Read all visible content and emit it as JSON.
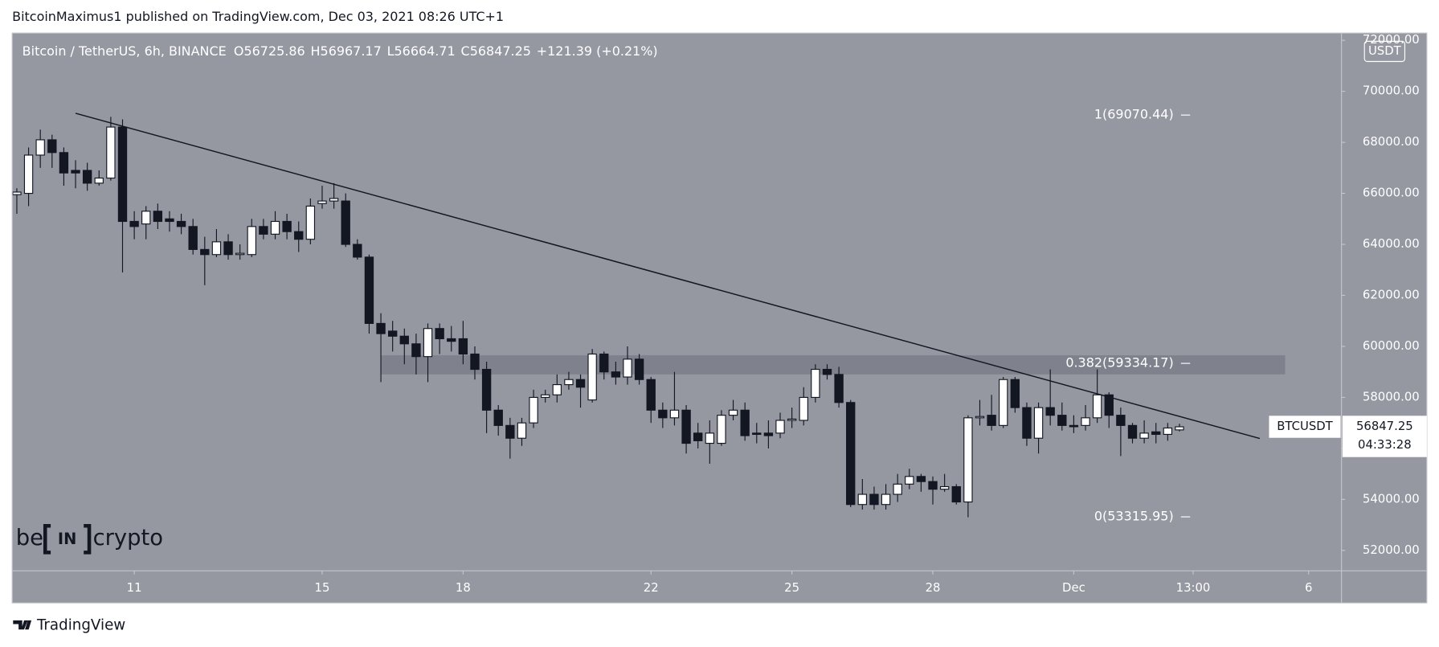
{
  "header": "BitcoinMaximus1 published on TradingView.com, Dec 03, 2021 08:26 UTC+1",
  "footer": "TradingView",
  "watermark": [
    "be",
    "IN",
    "crypto"
  ],
  "chart_data": {
    "type": "candlestick",
    "symbol": "Bitcoin / TetherUS, 6h, BINANCE",
    "legend": {
      "open_label": "O",
      "open": 56725.86,
      "high_label": "H",
      "high": 56967.17,
      "low_label": "L",
      "low": 56664.71,
      "close_label": "C",
      "close": 56847.25,
      "change": "+121.39 (+0.21%)"
    },
    "currency": "USDT",
    "ticker": "BTCUSDT",
    "last_price": 56847.25,
    "countdown": "04:33:28",
    "xlim": [
      8.42,
      36.7
    ],
    "xticks": [
      11,
      15,
      18,
      22,
      25,
      28,
      {
        "value": 31,
        "label": "Dec"
      },
      {
        "value": 33.5417,
        "label": "13:00"
      },
      {
        "value": 36,
        "label": "6"
      }
    ],
    "ylim": [
      51200,
      72250
    ],
    "yticks": [
      {
        "value": 52000,
        "label": "52000.00"
      },
      {
        "value": 54000,
        "label": "54000.00"
      },
      {
        "value": 56000,
        "label": "56000.00"
      },
      {
        "value": 58000,
        "label": "58000.00"
      },
      {
        "value": 60000,
        "label": "60000.00"
      },
      {
        "value": 62000,
        "label": "62000.00"
      },
      {
        "value": 64000,
        "label": "64000.00"
      },
      {
        "value": 66000,
        "label": "66000.00"
      },
      {
        "value": 68000,
        "label": "68000.00"
      },
      {
        "value": 70000,
        "label": "70000.00"
      },
      {
        "value": 72000,
        "label": "72000.00"
      }
    ],
    "x": [
      8.5,
      8.75,
      9,
      9.25,
      9.5,
      9.75,
      10,
      10.25,
      10.5,
      10.75,
      11,
      11.25,
      11.5,
      11.75,
      12,
      12.25,
      12.5,
      12.75,
      13,
      13.25,
      13.5,
      13.75,
      14,
      14.25,
      14.5,
      14.75,
      15,
      15.25,
      15.5,
      15.75,
      16,
      16.25,
      16.5,
      16.75,
      17,
      17.25,
      17.5,
      17.75,
      18,
      18.25,
      18.5,
      18.75,
      19,
      19.25,
      19.5,
      19.75,
      20,
      20.25,
      20.5,
      20.75,
      21,
      21.25,
      21.5,
      21.75,
      22,
      22.25,
      22.5,
      22.75,
      23,
      23.25,
      23.5,
      23.75,
      24,
      24.25,
      24.5,
      24.75,
      25,
      25.25,
      25.5,
      25.75,
      26,
      26.25,
      26.5,
      26.75,
      27,
      27.25,
      27.5,
      27.75,
      28,
      28.25,
      28.5,
      28.75,
      29,
      29.25,
      29.5,
      29.75,
      30,
      30.25,
      30.5,
      30.75,
      31,
      31.25,
      31.5,
      31.75,
      32,
      32.25,
      32.5,
      32.75,
      33,
      33.25
    ],
    "open": [
      65950,
      66000,
      67500,
      68100,
      67600,
      66900,
      66900,
      66400,
      66600,
      68600,
      64900,
      64800,
      65300,
      65000,
      64900,
      64700,
      63800,
      63600,
      64100,
      63600,
      63600,
      64700,
      64400,
      64900,
      64500,
      64200,
      65600,
      65700,
      65700,
      64000,
      63500,
      60900,
      60600,
      60400,
      60100,
      59600,
      60700,
      60300,
      60300,
      59700,
      59100,
      57500,
      56900,
      56400,
      57000,
      58000,
      58100,
      58500,
      58700,
      57900,
      59700,
      59000,
      58800,
      59500,
      58700,
      57500,
      57200,
      57500,
      56600,
      56200,
      56200,
      57300,
      57500,
      56600,
      56600,
      56600,
      57100,
      57100,
      58000,
      59100,
      58900,
      57800,
      53800,
      54200,
      53800,
      54200,
      54600,
      54900,
      54700,
      54400,
      54500,
      53900,
      57200,
      57300,
      56900,
      58700,
      57600,
      56400,
      57600,
      57300,
      56900,
      56900,
      57200,
      58100,
      57300,
      56900,
      56400,
      56650,
      56550,
      56725.86
    ],
    "high": [
      66200,
      67800,
      68500,
      68300,
      67800,
      67300,
      67200,
      66900,
      69000,
      68900,
      65300,
      65500,
      65600,
      65300,
      65200,
      65000,
      64300,
      64600,
      64400,
      64000,
      65000,
      65000,
      65300,
      65200,
      64900,
      65800,
      66300,
      66400,
      66000,
      64200,
      63600,
      61300,
      61000,
      60700,
      60500,
      60900,
      60900,
      60800,
      61000,
      60000,
      59400,
      57700,
      57200,
      57200,
      58300,
      58300,
      58900,
      59000,
      58900,
      59900,
      59800,
      59400,
      60000,
      59700,
      58800,
      57800,
      59000,
      57700,
      57000,
      57100,
      57500,
      57900,
      57800,
      57000,
      57100,
      57400,
      57600,
      58400,
      59300,
      59300,
      59200,
      57900,
      54800,
      54500,
      54600,
      55000,
      55200,
      55000,
      54900,
      55000,
      54600,
      57300,
      57900,
      58100,
      58800,
      58800,
      57800,
      57800,
      59100,
      57800,
      57300,
      57700,
      59100,
      58200,
      57600,
      57000,
      57100,
      57000,
      57000,
      56967.17
    ],
    "low": [
      65200,
      65500,
      67000,
      67000,
      66300,
      66200,
      66100,
      66300,
      66500,
      62900,
      64200,
      64200,
      64600,
      64500,
      64400,
      63600,
      62400,
      63500,
      63400,
      63400,
      63500,
      64200,
      64200,
      64200,
      63700,
      64000,
      65400,
      65400,
      63900,
      63400,
      60500,
      58600,
      59800,
      59300,
      58900,
      58600,
      59700,
      59800,
      59300,
      58700,
      56600,
      56500,
      55600,
      56100,
      56800,
      57800,
      57800,
      58300,
      57600,
      57800,
      58700,
      58500,
      58500,
      58500,
      57000,
      56800,
      56900,
      55800,
      56000,
      55400,
      56100,
      57100,
      56300,
      56200,
      56000,
      56400,
      56800,
      56900,
      57800,
      58700,
      57600,
      53700,
      53600,
      53600,
      53600,
      53900,
      54400,
      54300,
      53800,
      54300,
      53800,
      53300,
      56900,
      56700,
      56800,
      57400,
      56100,
      55800,
      56900,
      56700,
      56600,
      56700,
      57000,
      56800,
      55700,
      56200,
      56200,
      56200,
      56300,
      56664.71
    ],
    "close": [
      66050,
      67500,
      68100,
      67600,
      66800,
      66800,
      66400,
      66600,
      68600,
      64900,
      64700,
      65300,
      64900,
      64900,
      64700,
      63800,
      63600,
      64100,
      63600,
      63650,
      64700,
      64400,
      64900,
      64500,
      64200,
      65500,
      65700,
      65800,
      64000,
      63500,
      60900,
      60500,
      60400,
      60100,
      59600,
      60700,
      60300,
      60200,
      59700,
      59100,
      57500,
      56900,
      56400,
      57000,
      58000,
      58100,
      58500,
      58700,
      58400,
      59700,
      59000,
      58800,
      59500,
      58700,
      57500,
      57200,
      57500,
      56200,
      56300,
      56600,
      57300,
      57500,
      56500,
      56550,
      56500,
      57100,
      57150,
      58000,
      59100,
      58900,
      57800,
      53800,
      54200,
      53800,
      54200,
      54600,
      54900,
      54700,
      54400,
      54500,
      53900,
      57200,
      57250,
      56900,
      58700,
      57600,
      56400,
      57600,
      57300,
      56900,
      56850,
      57200,
      58100,
      57300,
      56900,
      56400,
      56600,
      56550,
      56800,
      56847.25
    ],
    "up_color": "#ffffff",
    "down_color": "#131722",
    "trendline": {
      "x": [
        9.75,
        34.96
      ],
      "y": [
        69140,
        56390
      ],
      "color": "#131722"
    },
    "zone": {
      "x": [
        16.25,
        35.5
      ],
      "y": [
        58900,
        59650
      ],
      "color": "#787b86"
    },
    "fib_levels": [
      {
        "label": "1(69070.44)",
        "price": 69070.44
      },
      {
        "label": "0.382(59334.17)",
        "price": 59334.17
      },
      {
        "label": "0(53315.95)",
        "price": 53315.95
      }
    ]
  }
}
